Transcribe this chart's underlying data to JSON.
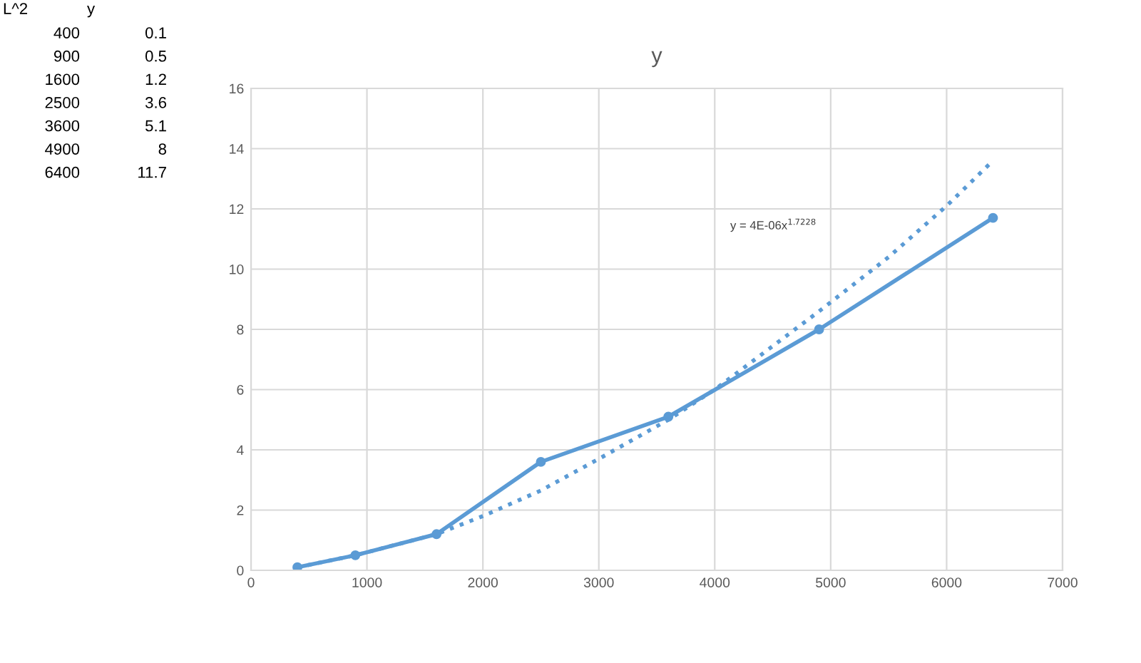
{
  "chart_data": {
    "type": "line",
    "title": "y",
    "x": [
      400,
      900,
      1600,
      2500,
      3600,
      4900,
      6400
    ],
    "series": [
      {
        "color": "#5b9bd5",
        "values": [
          0.1,
          0.5,
          1.2,
          3.6,
          5.1,
          8,
          11.7
        ],
        "marker": "circle",
        "line_style": "solid"
      },
      {
        "color": "#5b9bd5",
        "x": [
          400,
          900,
          1600,
          2000,
          2500,
          3000,
          3600,
          4000,
          4900,
          5500,
          6000,
          6400
        ],
        "values": [
          0.1,
          0.5,
          1.2,
          1.8,
          2.65,
          3.7,
          5.0,
          6.0,
          8.6,
          10.4,
          12.1,
          13.6
        ],
        "marker": "none",
        "line_style": "dotted"
      }
    ],
    "xlim": [
      0,
      7000
    ],
    "xticks": [
      0,
      1000,
      2000,
      3000,
      4000,
      5000,
      6000,
      7000
    ],
    "ylim": [
      0,
      16
    ],
    "yticks": [
      0,
      2,
      4,
      6,
      8,
      10,
      12,
      14,
      16
    ],
    "grid": true,
    "annotations": [
      "y = 4E-06x$^{1.7228}$",
      "L^2",
      "y",
      "400",
      "0.1",
      "900",
      "0.5",
      "1600",
      "1.2",
      "2500",
      "3.6",
      "3600",
      "5.1",
      "4900",
      "8",
      "6400",
      "11.7"
    ]
  }
}
